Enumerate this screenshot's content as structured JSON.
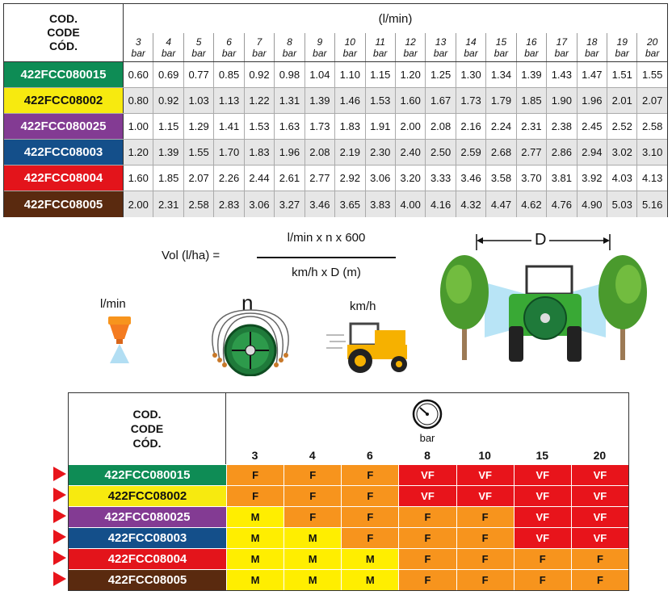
{
  "code_header": [
    "COD.",
    "CODE",
    "CÓD."
  ],
  "flow_table": {
    "unit": "(l/min)",
    "pressure_unit": "bar",
    "pressures": [
      "3",
      "4",
      "5",
      "6",
      "7",
      "8",
      "9",
      "10",
      "11",
      "12",
      "13",
      "14",
      "15",
      "16",
      "17",
      "18",
      "19",
      "20"
    ],
    "rows": [
      {
        "code": "422FCC080015",
        "color": "#0e8c55",
        "text_color": "#ffffff",
        "values": [
          "0.60",
          "0.69",
          "0.77",
          "0.85",
          "0.92",
          "0.98",
          "1.04",
          "1.10",
          "1.15",
          "1.20",
          "1.25",
          "1.30",
          "1.34",
          "1.39",
          "1.43",
          "1.47",
          "1.51",
          "1.55"
        ]
      },
      {
        "code": "422FCC08002",
        "color": "#f7ea0f",
        "text_color": "#111111",
        "values": [
          "0.80",
          "0.92",
          "1.03",
          "1.13",
          "1.22",
          "1.31",
          "1.39",
          "1.46",
          "1.53",
          "1.60",
          "1.67",
          "1.73",
          "1.79",
          "1.85",
          "1.90",
          "1.96",
          "2.01",
          "2.07"
        ]
      },
      {
        "code": "422FCC080025",
        "color": "#833b93",
        "text_color": "#ffffff",
        "values": [
          "1.00",
          "1.15",
          "1.29",
          "1.41",
          "1.53",
          "1.63",
          "1.73",
          "1.83",
          "1.91",
          "2.00",
          "2.08",
          "2.16",
          "2.24",
          "2.31",
          "2.38",
          "2.45",
          "2.52",
          "2.58"
        ]
      },
      {
        "code": "422FCC08003",
        "color": "#144f8a",
        "text_color": "#ffffff",
        "values": [
          "1.20",
          "1.39",
          "1.55",
          "1.70",
          "1.83",
          "1.96",
          "2.08",
          "2.19",
          "2.30",
          "2.40",
          "2.50",
          "2.59",
          "2.68",
          "2.77",
          "2.86",
          "2.94",
          "3.02",
          "3.10"
        ]
      },
      {
        "code": "422FCC08004",
        "color": "#e3141b",
        "text_color": "#ffffff",
        "values": [
          "1.60",
          "1.85",
          "2.07",
          "2.26",
          "2.44",
          "2.61",
          "2.77",
          "2.92",
          "3.06",
          "3.20",
          "3.33",
          "3.46",
          "3.58",
          "3.70",
          "3.81",
          "3.92",
          "4.03",
          "4.13"
        ]
      },
      {
        "code": "422FCC08005",
        "color": "#5a2a0f",
        "text_color": "#ffffff",
        "values": [
          "2.00",
          "2.31",
          "2.58",
          "2.83",
          "3.06",
          "3.27",
          "3.46",
          "3.65",
          "3.83",
          "4.00",
          "4.16",
          "4.32",
          "4.47",
          "4.62",
          "4.76",
          "4.90",
          "5.03",
          "5.16"
        ]
      }
    ]
  },
  "formula": {
    "lhs": "Vol (l/ha) =",
    "numerator": "l/min x n x 600",
    "denominator": "km/h x D (m)"
  },
  "labels": {
    "lmin": "l/min",
    "n": "n",
    "kmh": "km/h",
    "d": "D"
  },
  "class_table": {
    "gauge_label": "bar",
    "pressures": [
      "3",
      "4",
      "6",
      "8",
      "10",
      "15",
      "20"
    ],
    "rows": [
      {
        "code": "422FCC080015",
        "color": "#0e8c55",
        "text_color": "#ffffff",
        "classes": [
          "F",
          "F",
          "F",
          "VF",
          "VF",
          "VF",
          "VF"
        ]
      },
      {
        "code": "422FCC08002",
        "color": "#f7ea0f",
        "text_color": "#111111",
        "classes": [
          "F",
          "F",
          "F",
          "VF",
          "VF",
          "VF",
          "VF"
        ]
      },
      {
        "code": "422FCC080025",
        "color": "#833b93",
        "text_color": "#ffffff",
        "classes": [
          "M",
          "F",
          "F",
          "F",
          "F",
          "VF",
          "VF"
        ]
      },
      {
        "code": "422FCC08003",
        "color": "#144f8a",
        "text_color": "#ffffff",
        "classes": [
          "M",
          "M",
          "F",
          "F",
          "F",
          "VF",
          "VF"
        ]
      },
      {
        "code": "422FCC08004",
        "color": "#e3141b",
        "text_color": "#ffffff",
        "classes": [
          "M",
          "M",
          "M",
          "F",
          "F",
          "F",
          "F"
        ]
      },
      {
        "code": "422FCC08005",
        "color": "#5a2a0f",
        "text_color": "#ffffff",
        "classes": [
          "M",
          "M",
          "M",
          "F",
          "F",
          "F",
          "F"
        ]
      }
    ]
  }
}
